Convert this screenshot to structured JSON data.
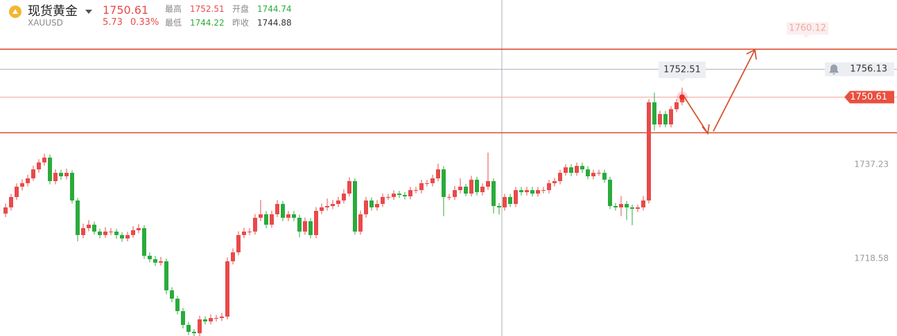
{
  "header": {
    "name": "现货黄金",
    "symbol": "XAUUSD",
    "price": 1750.61,
    "change": 5.73,
    "change_pct": "0.33%",
    "fields": [
      {
        "label": "最高",
        "value": 1752.51,
        "tone": "up"
      },
      {
        "label": "开盘",
        "value": 1744.74,
        "tone": "down"
      },
      {
        "label": "最低",
        "value": 1744.22,
        "tone": "down"
      },
      {
        "label": "昨收",
        "value": 1744.88,
        "tone": "flat"
      }
    ]
  },
  "chart_data": {
    "type": "candlestick",
    "ylim": [
      1703.21,
      1769.88
    ],
    "yticks": [
      1737.23,
      1718.58
    ],
    "up_color": "#e84a4a",
    "down_color": "#2aab3b",
    "price_lines": [
      {
        "value": 1760.12,
        "color": "#d9502e",
        "style": "faded"
      },
      {
        "value": 1756.13,
        "color": "#a7abb8",
        "style": "alert"
      },
      {
        "value": 1750.61,
        "color": "#f2a6a0",
        "style": "current"
      },
      {
        "value": 1743.54,
        "color": "#d9502e",
        "style": "plain"
      }
    ],
    "candles": [
      [
        1727.5,
        1729.5,
        1726.8,
        1728.73
      ],
      [
        1728.73,
        1731.4,
        1728.1,
        1730.79
      ],
      [
        1730.79,
        1733.5,
        1730.2,
        1732.84
      ],
      [
        1732.84,
        1734.3,
        1732.1,
        1733.53
      ],
      [
        1733.53,
        1735.2,
        1732.9,
        1734.49
      ],
      [
        1734.49,
        1737.0,
        1734.0,
        1736.27
      ],
      [
        1736.27,
        1738.3,
        1735.6,
        1737.65
      ],
      [
        1737.65,
        1739.4,
        1737.0,
        1738.61
      ],
      [
        1738.61,
        1739.2,
        1733.3,
        1733.94
      ],
      [
        1733.94,
        1736.3,
        1733.3,
        1735.59
      ],
      [
        1735.59,
        1736.2,
        1734.2,
        1734.9
      ],
      [
        1734.9,
        1736.4,
        1734.3,
        1735.59
      ],
      [
        1735.59,
        1736.1,
        1729.5,
        1730.1
      ],
      [
        1730.1,
        1730.6,
        1722.0,
        1723.24
      ],
      [
        1723.24,
        1725.5,
        1722.6,
        1724.61
      ],
      [
        1724.61,
        1726.2,
        1724.0,
        1725.3
      ],
      [
        1725.3,
        1725.9,
        1723.3,
        1723.93
      ],
      [
        1723.93,
        1724.5,
        1722.6,
        1723.24
      ],
      [
        1723.24,
        1724.8,
        1722.7,
        1723.93
      ],
      [
        1723.93,
        1724.6,
        1723.2,
        1723.93
      ],
      [
        1723.93,
        1724.5,
        1722.5,
        1723.24
      ],
      [
        1723.24,
        1723.8,
        1721.9,
        1722.56
      ],
      [
        1722.56,
        1723.9,
        1722.0,
        1723.24
      ],
      [
        1723.24,
        1725.0,
        1722.7,
        1724.2
      ],
      [
        1724.2,
        1725.4,
        1723.6,
        1724.61
      ],
      [
        1724.61,
        1725.2,
        1718.5,
        1719.13
      ],
      [
        1719.13,
        1719.8,
        1717.8,
        1718.44
      ],
      [
        1718.44,
        1719.1,
        1717.1,
        1717.76
      ],
      [
        1717.76,
        1718.9,
        1717.2,
        1718.03
      ],
      [
        1718.03,
        1718.6,
        1711.5,
        1712.27
      ],
      [
        1712.27,
        1712.9,
        1709.9,
        1710.62
      ],
      [
        1710.62,
        1711.2,
        1707.5,
        1708.15
      ],
      [
        1708.15,
        1708.8,
        1704.7,
        1705.41
      ],
      [
        1705.41,
        1706.0,
        1703.4,
        1704.04
      ],
      [
        1704.04,
        1704.6,
        1703.2,
        1703.76
      ],
      [
        1703.76,
        1707.2,
        1703.2,
        1706.51
      ],
      [
        1706.51,
        1707.1,
        1705.5,
        1706.1
      ],
      [
        1706.1,
        1707.5,
        1705.5,
        1706.78
      ],
      [
        1706.78,
        1707.4,
        1706.1,
        1706.78
      ],
      [
        1706.78,
        1707.8,
        1706.2,
        1707.06
      ],
      [
        1707.06,
        1718.8,
        1706.5,
        1718.03
      ],
      [
        1718.03,
        1720.6,
        1717.4,
        1719.81
      ],
      [
        1719.81,
        1724.0,
        1719.2,
        1723.24
      ],
      [
        1723.24,
        1724.7,
        1722.6,
        1723.93
      ],
      [
        1723.93,
        1724.6,
        1723.2,
        1723.93
      ],
      [
        1723.93,
        1727.4,
        1723.3,
        1726.67
      ],
      [
        1726.67,
        1730.2,
        1726.0,
        1727.36
      ],
      [
        1727.36,
        1728.0,
        1724.6,
        1725.3
      ],
      [
        1725.3,
        1728.1,
        1724.7,
        1727.36
      ],
      [
        1727.36,
        1730.2,
        1726.8,
        1729.41
      ],
      [
        1729.41,
        1730.0,
        1726.0,
        1726.67
      ],
      [
        1726.67,
        1728.0,
        1726.0,
        1727.36
      ],
      [
        1727.36,
        1728.0,
        1726.0,
        1726.67
      ],
      [
        1726.67,
        1727.3,
        1722.8,
        1723.93
      ],
      [
        1723.93,
        1726.7,
        1723.3,
        1725.99
      ],
      [
        1725.99,
        1726.6,
        1722.6,
        1723.24
      ],
      [
        1723.24,
        1728.8,
        1722.6,
        1728.04
      ],
      [
        1728.04,
        1729.5,
        1727.4,
        1728.73
      ],
      [
        1728.73,
        1730.5,
        1728.1,
        1729.0
      ],
      [
        1729.0,
        1730.2,
        1728.4,
        1729.41
      ],
      [
        1729.41,
        1730.8,
        1728.8,
        1730.1
      ],
      [
        1730.1,
        1732.3,
        1729.5,
        1731.47
      ],
      [
        1731.47,
        1734.7,
        1730.9,
        1733.94
      ],
      [
        1733.94,
        1734.5,
        1723.3,
        1723.93
      ],
      [
        1723.93,
        1728.1,
        1723.3,
        1727.36
      ],
      [
        1727.36,
        1730.8,
        1726.7,
        1730.1
      ],
      [
        1730.1,
        1730.7,
        1728.1,
        1728.73
      ],
      [
        1728.73,
        1730.2,
        1728.1,
        1729.41
      ],
      [
        1729.41,
        1731.5,
        1728.8,
        1730.79
      ],
      [
        1730.79,
        1731.4,
        1730.2,
        1730.79
      ],
      [
        1730.79,
        1732.1,
        1730.2,
        1731.47
      ],
      [
        1731.47,
        1732.0,
        1730.6,
        1731.2
      ],
      [
        1731.2,
        1731.8,
        1730.3,
        1730.92
      ],
      [
        1730.92,
        1732.8,
        1730.3,
        1732.16
      ],
      [
        1732.16,
        1732.8,
        1731.5,
        1732.16
      ],
      [
        1732.16,
        1734.2,
        1731.5,
        1733.53
      ],
      [
        1733.53,
        1734.2,
        1732.9,
        1733.53
      ],
      [
        1733.53,
        1735.2,
        1732.9,
        1734.49
      ],
      [
        1734.49,
        1737.4,
        1733.9,
        1736.27
      ],
      [
        1736.27,
        1736.9,
        1727.0,
        1730.79
      ],
      [
        1730.79,
        1731.4,
        1730.2,
        1730.79
      ],
      [
        1730.79,
        1733.0,
        1730.2,
        1732.16
      ],
      [
        1732.16,
        1734.5,
        1731.5,
        1732.84
      ],
      [
        1732.84,
        1733.4,
        1730.9,
        1731.47
      ],
      [
        1731.47,
        1735.0,
        1730.9,
        1734.22
      ],
      [
        1734.22,
        1734.8,
        1731.1,
        1731.75
      ],
      [
        1731.75,
        1733.5,
        1731.1,
        1732.84
      ],
      [
        1732.84,
        1739.6,
        1732.2,
        1733.94
      ],
      [
        1733.94,
        1734.5,
        1727.5,
        1729.0
      ],
      [
        1729.0,
        1729.6,
        1727.3,
        1728.73
      ],
      [
        1728.73,
        1731.4,
        1728.1,
        1730.79
      ],
      [
        1730.79,
        1731.4,
        1728.8,
        1729.41
      ],
      [
        1729.41,
        1732.8,
        1728.8,
        1732.16
      ],
      [
        1732.16,
        1732.8,
        1731.1,
        1731.75
      ],
      [
        1731.75,
        1732.8,
        1731.1,
        1732.16
      ],
      [
        1732.16,
        1732.8,
        1730.9,
        1731.47
      ],
      [
        1731.47,
        1732.8,
        1730.9,
        1732.16
      ],
      [
        1732.16,
        1732.8,
        1731.5,
        1732.16
      ],
      [
        1732.16,
        1734.2,
        1731.5,
        1733.53
      ],
      [
        1733.53,
        1734.6,
        1732.9,
        1733.94
      ],
      [
        1733.94,
        1736.2,
        1733.3,
        1735.59
      ],
      [
        1735.59,
        1737.3,
        1735.0,
        1736.68
      ],
      [
        1736.68,
        1737.3,
        1734.9,
        1735.59
      ],
      [
        1735.59,
        1737.6,
        1735.0,
        1736.96
      ],
      [
        1736.96,
        1737.6,
        1735.6,
        1736.27
      ],
      [
        1736.27,
        1736.9,
        1734.3,
        1734.9
      ],
      [
        1734.9,
        1736.2,
        1734.3,
        1735.59
      ],
      [
        1735.59,
        1736.2,
        1735.0,
        1735.59
      ],
      [
        1735.59,
        1736.2,
        1733.6,
        1734.22
      ],
      [
        1734.22,
        1734.8,
        1728.4,
        1729.0
      ],
      [
        1729.0,
        1729.6,
        1728.1,
        1728.73
      ],
      [
        1728.73,
        1731.0,
        1727.0,
        1729.41
      ],
      [
        1729.41,
        1730.0,
        1726.2,
        1728.73
      ],
      [
        1728.73,
        1729.3,
        1725.2,
        1728.45
      ],
      [
        1728.45,
        1729.3,
        1727.8,
        1728.73
      ],
      [
        1728.73,
        1731.0,
        1728.1,
        1730.1
      ],
      [
        1730.1,
        1750.2,
        1729.5,
        1749.58
      ],
      [
        1749.58,
        1751.5,
        1744.0,
        1745.19
      ],
      [
        1745.19,
        1747.9,
        1744.6,
        1747.25
      ],
      [
        1747.25,
        1747.9,
        1744.6,
        1745.19
      ],
      [
        1745.19,
        1748.8,
        1744.6,
        1748.21
      ],
      [
        1748.21,
        1750.2,
        1747.6,
        1749.58
      ],
      [
        1749.58,
        1752.51,
        1749.0,
        1750.61
      ]
    ]
  }
}
